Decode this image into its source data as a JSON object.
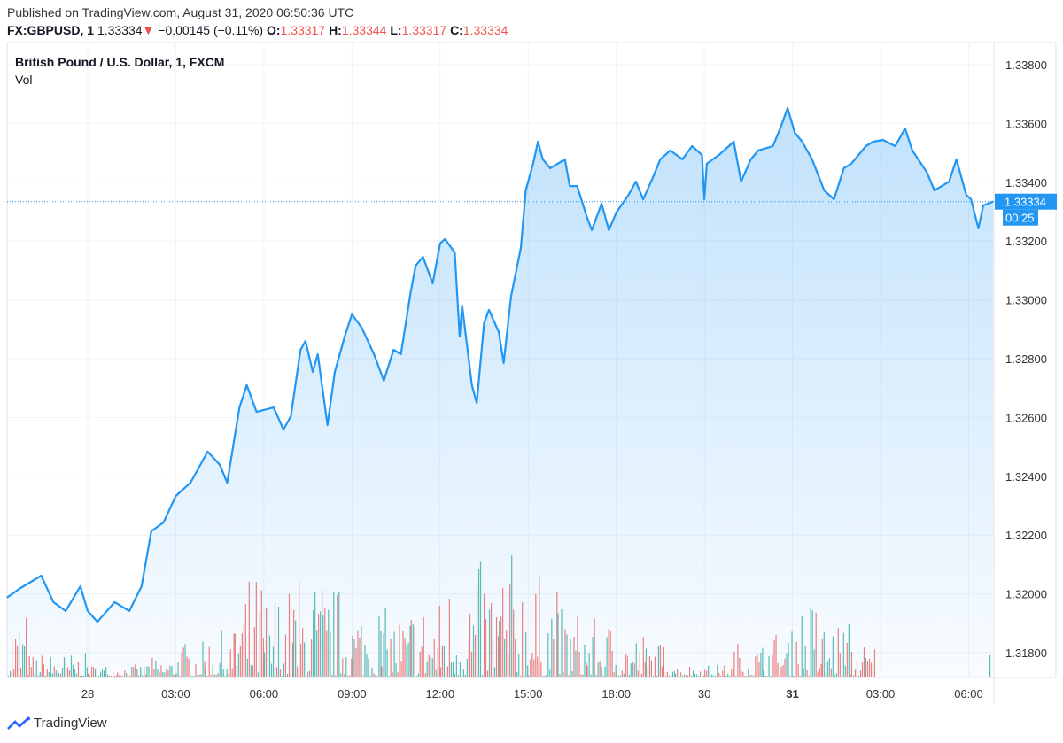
{
  "header": {
    "published": "Published on TradingView.com, August 31, 2020 06:50:36 UTC",
    "symbol": "FX:GBPUSD, 1",
    "last": "1.33334",
    "change": "−0.00145 (−0.11%)",
    "o_label": "O:",
    "o": "1.33317",
    "h_label": "H:",
    "h": "1.33344",
    "l_label": "L:",
    "l": "1.33317",
    "c_label": "C:",
    "c": "1.33334",
    "direction_icon": "triangle-down-icon"
  },
  "legend": {
    "title": "British Pound / U.S. Dollar, 1, FXCM",
    "vol": "Vol"
  },
  "brand": {
    "name": "TradingView",
    "icon": "tradingview-logo-icon"
  },
  "colors": {
    "line": "#2196f3",
    "up": "#26a69a",
    "down": "#ef5350",
    "price_label_bg": "#2196f3"
  },
  "chart_data": {
    "type": "area",
    "series": [
      {
        "values": [
          [
            "2020-08-27 21:15",
            1.31987
          ],
          [
            "2020-08-27 21:40",
            1.32017
          ],
          [
            "2020-08-27 22:25",
            1.32062
          ],
          [
            "2020-08-27 22:50",
            1.31972
          ],
          [
            "2020-08-27 23:15",
            1.31942
          ],
          [
            "2020-08-27 23:45",
            1.32026
          ],
          [
            "2020-08-28 00:00",
            1.31942
          ],
          [
            "2020-08-28 00:20",
            1.31905
          ],
          [
            "2020-08-28 00:55",
            1.31972
          ],
          [
            "2020-08-28 01:25",
            1.31942
          ],
          [
            "2020-08-28 01:50",
            1.32026
          ],
          [
            "2020-08-28 02:10",
            1.32213
          ],
          [
            "2020-08-28 02:35",
            1.32243
          ],
          [
            "2020-08-28 03:00",
            1.32333
          ],
          [
            "2020-08-28 03:30",
            1.32378
          ],
          [
            "2020-08-28 04:05",
            1.32484
          ],
          [
            "2020-08-28 04:30",
            1.32439
          ],
          [
            "2020-08-28 04:45",
            1.32378
          ],
          [
            "2020-08-28 05:10",
            1.32634
          ],
          [
            "2020-08-28 05:25",
            1.3271
          ],
          [
            "2020-08-28 05:45",
            1.32619
          ],
          [
            "2020-08-28 06:20",
            1.32634
          ],
          [
            "2020-08-28 06:40",
            1.32559
          ],
          [
            "2020-08-28 06:55",
            1.32604
          ],
          [
            "2020-08-28 07:15",
            1.3283
          ],
          [
            "2020-08-28 07:25",
            1.3286
          ],
          [
            "2020-08-28 07:40",
            1.32755
          ],
          [
            "2020-08-28 07:50",
            1.32815
          ],
          [
            "2020-08-28 08:10",
            1.32574
          ],
          [
            "2020-08-28 08:25",
            1.32755
          ],
          [
            "2020-08-28 08:45",
            1.32875
          ],
          [
            "2020-08-28 09:00",
            1.32951
          ],
          [
            "2020-08-28 09:20",
            1.32905
          ],
          [
            "2020-08-28 09:45",
            1.32815
          ],
          [
            "2020-08-28 10:05",
            1.32725
          ],
          [
            "2020-08-28 10:25",
            1.3283
          ],
          [
            "2020-08-28 10:40",
            1.32815
          ],
          [
            "2020-08-28 11:00",
            1.33026
          ],
          [
            "2020-08-28 11:10",
            1.33116
          ],
          [
            "2020-08-28 11:25",
            1.33146
          ],
          [
            "2020-08-28 11:45",
            1.33056
          ],
          [
            "2020-08-28 12:00",
            1.33192
          ],
          [
            "2020-08-28 12:10",
            1.33207
          ],
          [
            "2020-08-28 12:30",
            1.33161
          ],
          [
            "2020-08-28 12:40",
            1.32875
          ],
          [
            "2020-08-28 12:45",
            1.32981
          ],
          [
            "2020-08-28 13:05",
            1.3271
          ],
          [
            "2020-08-28 13:15",
            1.32649
          ],
          [
            "2020-08-28 13:30",
            1.32921
          ],
          [
            "2020-08-28 13:40",
            1.32966
          ],
          [
            "2020-08-28 14:00",
            1.3289
          ],
          [
            "2020-08-28 14:10",
            1.32785
          ],
          [
            "2020-08-28 14:25",
            1.33011
          ],
          [
            "2020-08-28 14:45",
            1.33177
          ],
          [
            "2020-08-28 14:55",
            1.33372
          ],
          [
            "2020-08-28 15:10",
            1.33463
          ],
          [
            "2020-08-28 15:20",
            1.33538
          ],
          [
            "2020-08-28 15:30",
            1.33478
          ],
          [
            "2020-08-28 15:45",
            1.33448
          ],
          [
            "2020-08-28 16:15",
            1.33478
          ],
          [
            "2020-08-28 16:25",
            1.33387
          ],
          [
            "2020-08-28 16:40",
            1.33387
          ],
          [
            "2020-08-28 17:00",
            1.33282
          ],
          [
            "2020-08-28 17:10",
            1.33237
          ],
          [
            "2020-08-28 17:30",
            1.33327
          ],
          [
            "2020-08-28 17:45",
            1.33237
          ],
          [
            "2020-08-28 18:00",
            1.33297
          ],
          [
            "2020-08-28 18:25",
            1.33357
          ],
          [
            "2020-08-28 18:40",
            1.33402
          ],
          [
            "2020-08-28 18:55",
            1.33342
          ],
          [
            "2020-08-28 19:15",
            1.33417
          ],
          [
            "2020-08-28 19:30",
            1.33478
          ],
          [
            "2020-08-28 19:50",
            1.33508
          ],
          [
            "2020-08-28 20:15",
            1.33478
          ],
          [
            "2020-08-28 20:35",
            1.33523
          ],
          [
            "2020-08-28 20:55",
            1.33493
          ],
          [
            "2020-08-30 21:00",
            1.33342
          ],
          [
            "2020-08-30 21:05",
            1.33463
          ],
          [
            "2020-08-30 21:30",
            1.33493
          ],
          [
            "2020-08-30 22:00",
            1.33538
          ],
          [
            "2020-08-30 22:15",
            1.33402
          ],
          [
            "2020-08-30 22:35",
            1.33478
          ],
          [
            "2020-08-30 22:50",
            1.33508
          ],
          [
            "2020-08-30 23:20",
            1.33523
          ],
          [
            "2020-08-30 23:35",
            1.33583
          ],
          [
            "2020-08-30 23:50",
            1.33652
          ],
          [
            "2020-08-31 00:05",
            1.33568
          ],
          [
            "2020-08-31 00:20",
            1.33538
          ],
          [
            "2020-08-31 00:40",
            1.33478
          ],
          [
            "2020-08-31 01:05",
            1.33372
          ],
          [
            "2020-08-31 01:25",
            1.33342
          ],
          [
            "2020-08-31 01:45",
            1.33448
          ],
          [
            "2020-08-31 02:00",
            1.33463
          ],
          [
            "2020-08-31 02:30",
            1.33523
          ],
          [
            "2020-08-31 02:45",
            1.33538
          ],
          [
            "2020-08-31 03:05",
            1.33544
          ],
          [
            "2020-08-31 03:30",
            1.33523
          ],
          [
            "2020-08-31 03:50",
            1.33583
          ],
          [
            "2020-08-31 04:05",
            1.33508
          ],
          [
            "2020-08-31 04:35",
            1.33433
          ],
          [
            "2020-08-31 04:50",
            1.33372
          ],
          [
            "2020-08-31 05:20",
            1.33402
          ],
          [
            "2020-08-31 05:35",
            1.33478
          ],
          [
            "2020-08-31 05:55",
            1.33357
          ],
          [
            "2020-08-31 06:05",
            1.33342
          ],
          [
            "2020-08-31 06:20",
            1.33243
          ],
          [
            "2020-08-31 06:30",
            1.33321
          ],
          [
            "2020-08-31 06:50",
            1.33334
          ]
        ]
      }
    ],
    "volume_relative_by_hour": [
      [
        "2020-08-27 21:00",
        0.3
      ],
      [
        "2020-08-27 22:00",
        0.1
      ],
      [
        "2020-08-27 23:00",
        0.1
      ],
      [
        "2020-08-28 00:00",
        0.05
      ],
      [
        "2020-08-28 01:00",
        0.05
      ],
      [
        "2020-08-28 02:00",
        0.08
      ],
      [
        "2020-08-28 03:00",
        0.15
      ],
      [
        "2020-08-28 04:00",
        0.2
      ],
      [
        "2020-08-28 05:00",
        0.45
      ],
      [
        "2020-08-28 06:00",
        0.4
      ],
      [
        "2020-08-28 07:00",
        0.45
      ],
      [
        "2020-08-28 08:00",
        0.4
      ],
      [
        "2020-08-28 09:00",
        0.35
      ],
      [
        "2020-08-28 10:00",
        0.3
      ],
      [
        "2020-08-28 11:00",
        0.35
      ],
      [
        "2020-08-28 12:00",
        0.45
      ],
      [
        "2020-08-28 13:00",
        0.5
      ],
      [
        "2020-08-28 14:00",
        0.55
      ],
      [
        "2020-08-28 15:00",
        0.45
      ],
      [
        "2020-08-28 16:00",
        0.3
      ],
      [
        "2020-08-28 17:00",
        0.25
      ],
      [
        "2020-08-28 18:00",
        0.2
      ],
      [
        "2020-08-28 19:00",
        0.15
      ],
      [
        "2020-08-28 20:00",
        0.05
      ],
      [
        "2020-08-30 21:00",
        0.05
      ],
      [
        "2020-08-30 22:00",
        0.15
      ],
      [
        "2020-08-30 23:00",
        0.2
      ],
      [
        "2020-08-31 00:00",
        0.35
      ],
      [
        "2020-08-31 01:00",
        0.25
      ],
      [
        "2020-08-31 02:00",
        0.15
      ]
    ],
    "y_ticks": [
      "1.31800",
      "1.32000",
      "1.32200",
      "1.32400",
      "1.32600",
      "1.32800",
      "1.33000",
      "1.33200",
      "1.33400",
      "1.33600",
      "1.33800"
    ],
    "ylim": [
      1.3171,
      1.3388
    ],
    "x_ticks": [
      [
        "2020-08-28 00:00",
        "28"
      ],
      [
        "2020-08-28 03:00",
        "03:00"
      ],
      [
        "2020-08-28 06:00",
        "06:00"
      ],
      [
        "2020-08-28 09:00",
        "09:00"
      ],
      [
        "2020-08-28 12:00",
        "12:00"
      ],
      [
        "2020-08-28 15:00",
        "15:00"
      ],
      [
        "2020-08-28 18:00",
        "18:00"
      ],
      [
        "2020-08-30 21:00",
        "30"
      ],
      [
        "2020-08-31 00:00",
        "31"
      ],
      [
        "2020-08-31 03:00",
        "03:00"
      ],
      [
        "2020-08-31 06:00",
        "06:00"
      ]
    ],
    "current_price": "1.33334",
    "countdown": "00:25",
    "grid": true
  }
}
